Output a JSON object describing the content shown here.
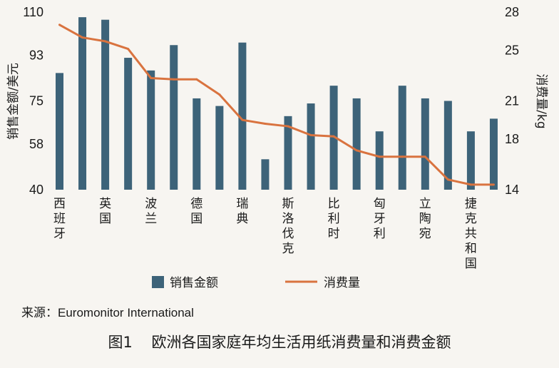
{
  "chart_data": {
    "type": "bar",
    "categories": [
      "西班牙",
      "",
      "英国",
      "",
      "波兰",
      "",
      "德国",
      "",
      "瑞典",
      "",
      "斯洛伐克",
      "",
      "比利时",
      "",
      "匈牙利",
      "",
      "立陶宛",
      "",
      "捷克共和国",
      ""
    ],
    "series": [
      {
        "name": "销售金额",
        "type": "bar",
        "axis": "left",
        "values": [
          86,
          108,
          107,
          92,
          87,
          97,
          76,
          73,
          98,
          52,
          69,
          74,
          81,
          76,
          63,
          81,
          76,
          75,
          63,
          68
        ]
      },
      {
        "name": "消费量",
        "type": "line",
        "axis": "right",
        "values": [
          27,
          26,
          25.7,
          25.1,
          22.8,
          22.7,
          22.7,
          21.5,
          19.5,
          19.2,
          19,
          18.3,
          18.2,
          17.1,
          16.6,
          16.6,
          16.6,
          14.8,
          14.4,
          14.4
        ]
      }
    ],
    "ylabel_left": "销售金额/美元",
    "ylabel_right": "消费量/kg",
    "ylim_left": [
      40,
      110
    ],
    "ylim_right": [
      14,
      28
    ],
    "yticks_left": [
      "110",
      "93",
      "75",
      "58",
      "40"
    ],
    "yticks_right": [
      "28",
      "25",
      "21",
      "18",
      "14"
    ],
    "legend_position": "bottom",
    "grid": false,
    "colors": {
      "bar": "#3d6379",
      "line": "#d9733f"
    }
  },
  "source_text": "来源：Euromonitor International",
  "caption_text": "图1    欧洲各国家庭年均生活用纸消费量和消费金额"
}
